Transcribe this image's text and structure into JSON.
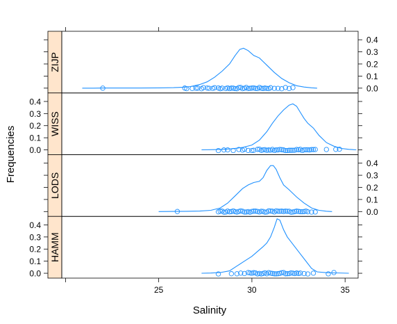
{
  "chart_data": {
    "type": "density",
    "xlabel": "Salinity",
    "ylabel": "Frequencies",
    "xlim": [
      19.8,
      35.7
    ],
    "ylim": [
      -0.04,
      0.47
    ],
    "x_ticks": [
      25,
      30,
      35
    ],
    "y_ticks": [
      0.0,
      0.1,
      0.2,
      0.3,
      0.4
    ],
    "y_tick_labels": [
      "0.0",
      "0.1",
      "0.2",
      "0.3",
      "0.4"
    ],
    "grid": false,
    "colors": {
      "line": "#1E90FF",
      "strip_bg": "#FFE5CC",
      "strip_border": "#000000"
    },
    "panels": [
      {
        "name": "ZIJP",
        "y_axis_side": "right",
        "density": [
          [
            20.9,
            0.0
          ],
          [
            21.5,
            0.0
          ],
          [
            22.0,
            0.001
          ],
          [
            23,
            0.001
          ],
          [
            24,
            0.001
          ],
          [
            25,
            0.002
          ],
          [
            25.8,
            0.004
          ],
          [
            26.3,
            0.008
          ],
          [
            26.7,
            0.013
          ],
          [
            27.2,
            0.03
          ],
          [
            27.6,
            0.052
          ],
          [
            28.0,
            0.09
          ],
          [
            28.4,
            0.14
          ],
          [
            28.8,
            0.2
          ],
          [
            29.1,
            0.27
          ],
          [
            29.35,
            0.32
          ],
          [
            29.55,
            0.33
          ],
          [
            29.8,
            0.31
          ],
          [
            30.1,
            0.27
          ],
          [
            30.4,
            0.25
          ],
          [
            30.8,
            0.19
          ],
          [
            31.2,
            0.13
          ],
          [
            31.6,
            0.08
          ],
          [
            32.0,
            0.045
          ],
          [
            32.4,
            0.02
          ],
          [
            32.8,
            0.009
          ],
          [
            33.2,
            0.003
          ],
          [
            33.5,
            0.0
          ]
        ],
        "points": [
          22.0,
          26.4,
          26.5,
          26.8,
          27.0,
          27.1,
          27.3,
          27.4,
          27.6,
          27.7,
          27.9,
          28.0,
          28.2,
          28.3,
          28.4,
          28.6,
          28.7,
          28.8,
          28.9,
          29.0,
          29.1,
          29.2,
          29.3,
          29.4,
          29.5,
          29.6,
          29.7,
          29.8,
          29.9,
          30.0,
          30.1,
          30.2,
          30.3,
          30.4,
          30.5,
          30.6,
          30.7,
          30.8,
          30.9,
          31.0,
          31.2,
          31.4,
          31.6,
          31.8,
          32.0,
          32.2
        ]
      },
      {
        "name": "WISS",
        "y_axis_side": "left",
        "density": [
          [
            27.3,
            0.0
          ],
          [
            28,
            0.002
          ],
          [
            28.5,
            0.005
          ],
          [
            29,
            0.01
          ],
          [
            29.5,
            0.02
          ],
          [
            30,
            0.04
          ],
          [
            30.4,
            0.08
          ],
          [
            30.8,
            0.15
          ],
          [
            31.1,
            0.22
          ],
          [
            31.4,
            0.28
          ],
          [
            31.7,
            0.33
          ],
          [
            32.0,
            0.37
          ],
          [
            32.2,
            0.38
          ],
          [
            32.4,
            0.36
          ],
          [
            32.6,
            0.31
          ],
          [
            32.8,
            0.26
          ],
          [
            33.0,
            0.22
          ],
          [
            33.3,
            0.18
          ],
          [
            33.6,
            0.12
          ],
          [
            34.0,
            0.06
          ],
          [
            34.4,
            0.03
          ],
          [
            34.8,
            0.012
          ],
          [
            35.2,
            0.004
          ],
          [
            35.6,
            0.0
          ]
        ],
        "points": [
          28.2,
          28.5,
          28.7,
          29.0,
          29.3,
          29.5,
          29.6,
          29.8,
          30.0,
          30.1,
          30.3,
          30.4,
          30.5,
          30.6,
          30.7,
          30.8,
          30.9,
          31.0,
          31.1,
          31.2,
          31.3,
          31.4,
          31.5,
          31.6,
          31.7,
          31.8,
          31.9,
          32.0,
          32.1,
          32.2,
          32.3,
          32.4,
          32.5,
          32.6,
          32.7,
          32.8,
          32.9,
          33.0,
          33.1,
          33.2,
          33.3,
          33.4,
          34.0,
          34.5,
          34.7
        ]
      },
      {
        "name": "LODS",
        "y_axis_side": "right",
        "density": [
          [
            25.0,
            0.0
          ],
          [
            25.8,
            0.001
          ],
          [
            26.5,
            0.002
          ],
          [
            27.2,
            0.004
          ],
          [
            27.8,
            0.01
          ],
          [
            28.3,
            0.03
          ],
          [
            28.7,
            0.07
          ],
          [
            29.1,
            0.13
          ],
          [
            29.5,
            0.19
          ],
          [
            29.8,
            0.22
          ],
          [
            30.1,
            0.24
          ],
          [
            30.4,
            0.25
          ],
          [
            30.6,
            0.28
          ],
          [
            30.8,
            0.34
          ],
          [
            31.0,
            0.38
          ],
          [
            31.15,
            0.38
          ],
          [
            31.3,
            0.35
          ],
          [
            31.5,
            0.28
          ],
          [
            31.7,
            0.22
          ],
          [
            32.0,
            0.18
          ],
          [
            32.4,
            0.12
          ],
          [
            32.8,
            0.07
          ],
          [
            33.2,
            0.03
          ],
          [
            33.6,
            0.01
          ],
          [
            34.0,
            0.003
          ],
          [
            34.3,
            0.0
          ]
        ],
        "points": [
          26.0,
          28.2,
          28.3,
          28.4,
          28.5,
          28.6,
          28.7,
          28.8,
          28.9,
          29.0,
          29.1,
          29.2,
          29.3,
          29.4,
          29.5,
          29.6,
          29.7,
          29.8,
          29.9,
          30.0,
          30.1,
          30.2,
          30.3,
          30.4,
          30.5,
          30.6,
          30.7,
          30.8,
          30.9,
          31.0,
          31.1,
          31.2,
          31.3,
          31.4,
          31.5,
          31.6,
          31.7,
          31.8,
          31.9,
          32.0,
          32.1,
          32.2,
          32.3,
          32.4,
          32.5,
          32.6,
          32.7,
          32.8,
          32.9,
          33.0,
          33.2,
          33.4
        ]
      },
      {
        "name": "HAMM",
        "y_axis_side": "left",
        "density": [
          [
            27.3,
            0.0
          ],
          [
            27.8,
            0.002
          ],
          [
            28.3,
            0.006
          ],
          [
            28.8,
            0.02
          ],
          [
            29.2,
            0.06
          ],
          [
            29.6,
            0.1
          ],
          [
            30.0,
            0.14
          ],
          [
            30.3,
            0.18
          ],
          [
            30.6,
            0.22
          ],
          [
            30.8,
            0.25
          ],
          [
            31.0,
            0.3
          ],
          [
            31.2,
            0.38
          ],
          [
            31.35,
            0.45
          ],
          [
            31.5,
            0.44
          ],
          [
            31.7,
            0.36
          ],
          [
            31.9,
            0.3
          ],
          [
            32.1,
            0.26
          ],
          [
            32.3,
            0.22
          ],
          [
            32.6,
            0.16
          ],
          [
            32.9,
            0.1
          ],
          [
            33.2,
            0.04
          ],
          [
            33.5,
            0.012
          ],
          [
            34.0,
            0.005
          ],
          [
            34.5,
            0.003
          ],
          [
            35.2,
            0.0
          ]
        ],
        "points": [
          28.2,
          28.9,
          29.2,
          29.4,
          29.6,
          29.8,
          29.9,
          30.0,
          30.1,
          30.2,
          30.3,
          30.4,
          30.5,
          30.6,
          30.7,
          30.8,
          30.9,
          31.0,
          31.1,
          31.2,
          31.3,
          31.4,
          31.5,
          31.6,
          31.7,
          31.8,
          31.9,
          32.0,
          32.1,
          32.2,
          32.3,
          32.4,
          32.5,
          32.6,
          32.8,
          33.0,
          33.3,
          34.1,
          34.4
        ]
      }
    ]
  }
}
